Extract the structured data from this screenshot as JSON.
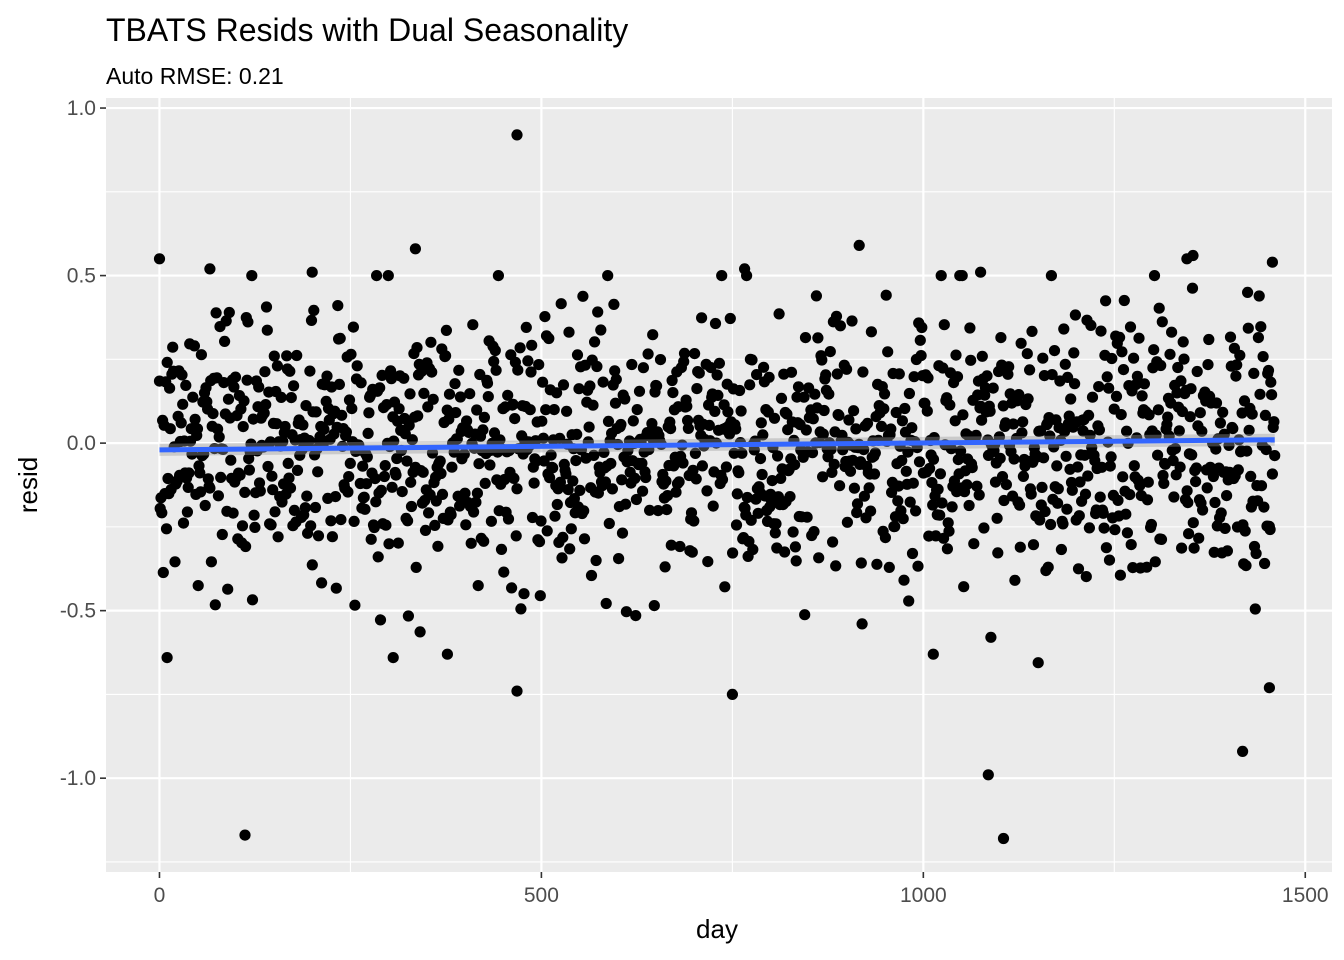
{
  "chart_data": {
    "type": "scatter",
    "title": "TBATS Resids with Dual Seasonality",
    "subtitle": "Auto RMSE: 0.21",
    "xlabel": "day",
    "ylabel": "resid",
    "xlim": [
      -70,
      1535
    ],
    "ylim": [
      -1.28,
      1.03
    ],
    "x_ticks": [
      0,
      500,
      1000,
      1500
    ],
    "x_tick_labels": [
      "0",
      "500",
      "1000",
      "1500"
    ],
    "y_ticks": [
      -1.0,
      -0.5,
      0.0,
      0.5,
      1.0
    ],
    "y_tick_labels": [
      "-1.0",
      "-0.5",
      "0.0",
      "0.5",
      "1.0"
    ],
    "grid": true,
    "panel_background": "#ebebeb",
    "point_color": "#000000",
    "trend_color": "#3366ff",
    "trend_line": {
      "x": [
        0,
        1460
      ],
      "y": [
        -0.02,
        0.01
      ]
    },
    "notable_points": [
      {
        "x": 468,
        "y": 0.92
      },
      {
        "x": 0,
        "y": 0.55
      },
      {
        "x": 66,
        "y": 0.52
      },
      {
        "x": 200,
        "y": 0.51
      },
      {
        "x": 335,
        "y": 0.58
      },
      {
        "x": 916,
        "y": 0.59
      },
      {
        "x": 766,
        "y": 0.52
      },
      {
        "x": 1075,
        "y": 0.51
      },
      {
        "x": 1345,
        "y": 0.55
      },
      {
        "x": 1353,
        "y": 0.56
      },
      {
        "x": 1457,
        "y": 0.54
      },
      {
        "x": 112,
        "y": -1.17
      },
      {
        "x": 1105,
        "y": -1.18
      },
      {
        "x": 1085,
        "y": -0.99
      },
      {
        "x": 1418,
        "y": -0.92
      },
      {
        "x": 750,
        "y": -0.75
      },
      {
        "x": 468,
        "y": -0.74
      },
      {
        "x": 1453,
        "y": -0.73
      },
      {
        "x": 10,
        "y": -0.64
      },
      {
        "x": 306,
        "y": -0.64
      },
      {
        "x": 377,
        "y": -0.63
      },
      {
        "x": 1013,
        "y": -0.63
      }
    ],
    "series": [
      {
        "n": 1461,
        "x_range": [
          0,
          1460
        ],
        "resid_sd": 0.21
      }
    ]
  }
}
